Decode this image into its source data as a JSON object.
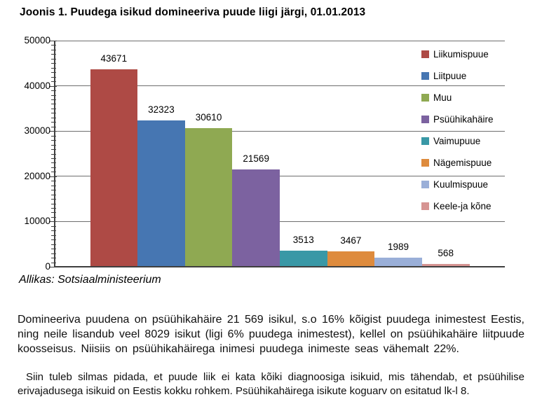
{
  "title": "Joonis 1. Puudega isikud domineeriva puude liigi järgi, 01.01.2013",
  "source": "Allikas: Sotsiaalministeerium",
  "paragraphs": [
    "Domineeriva puudena on psüühikahäire 21 569 isikul, s.o 16% kõigist puudega inimestest Eestis, ning neile lisandub veel 8029 isikut (ligi 6% puudega inimestest), kellel on psüühikahäire liitpuude koosseisus. Niisiis on psüühikahäirega inimesi puudega inimeste seas vähemalt 22%.",
    "Siin tuleb silmas pidada, et puude liik ei kata kõiki diagnoosiga isikuid, mis tähendab, et psüühilise erivajadusega isikuid on Eestis kokku rohkem. Psüühikahäirega isikute koguarv on esitatud lk-l 8."
  ],
  "chart_data": {
    "type": "bar",
    "title": "",
    "xlabel": "",
    "ylabel": "",
    "categories": [
      ""
    ],
    "series": [
      {
        "name": "Liikumispuue",
        "value": 43671,
        "color": "#AE4A45"
      },
      {
        "name": "Liitpuue",
        "value": 32323,
        "color": "#4676B2"
      },
      {
        "name": "Muu",
        "value": 30610,
        "color": "#8FA952"
      },
      {
        "name": "Psüühikahäire",
        "value": 21569,
        "color": "#7C62A0"
      },
      {
        "name": "Vaimupuue",
        "value": 3513,
        "color": "#3998A6"
      },
      {
        "name": "Nägemispuue",
        "value": 3467,
        "color": "#DE8B3D"
      },
      {
        "name": "Kuulmispuue",
        "value": 1989,
        "color": "#9AAFD8"
      },
      {
        "name": "Keele-ja kõne",
        "value": 568,
        "color": "#D69492"
      }
    ],
    "data_labels": [
      "43671",
      "32323",
      "30610",
      "21569",
      "3513",
      "3467",
      "1989",
      "568"
    ],
    "ylim": [
      0,
      50000
    ],
    "y_axis": {
      "ticks": [
        0,
        10000,
        20000,
        30000,
        40000,
        50000
      ],
      "tick_labels": [
        "0",
        "10000",
        "20000",
        "30000",
        "40000",
        "50000"
      ],
      "minor_unit": 1000
    },
    "grid": true,
    "legend_position": "right",
    "colors": {
      "gridline": "#6e6e6e",
      "axis": "#3f3f3f",
      "label_text": "#000000"
    }
  }
}
